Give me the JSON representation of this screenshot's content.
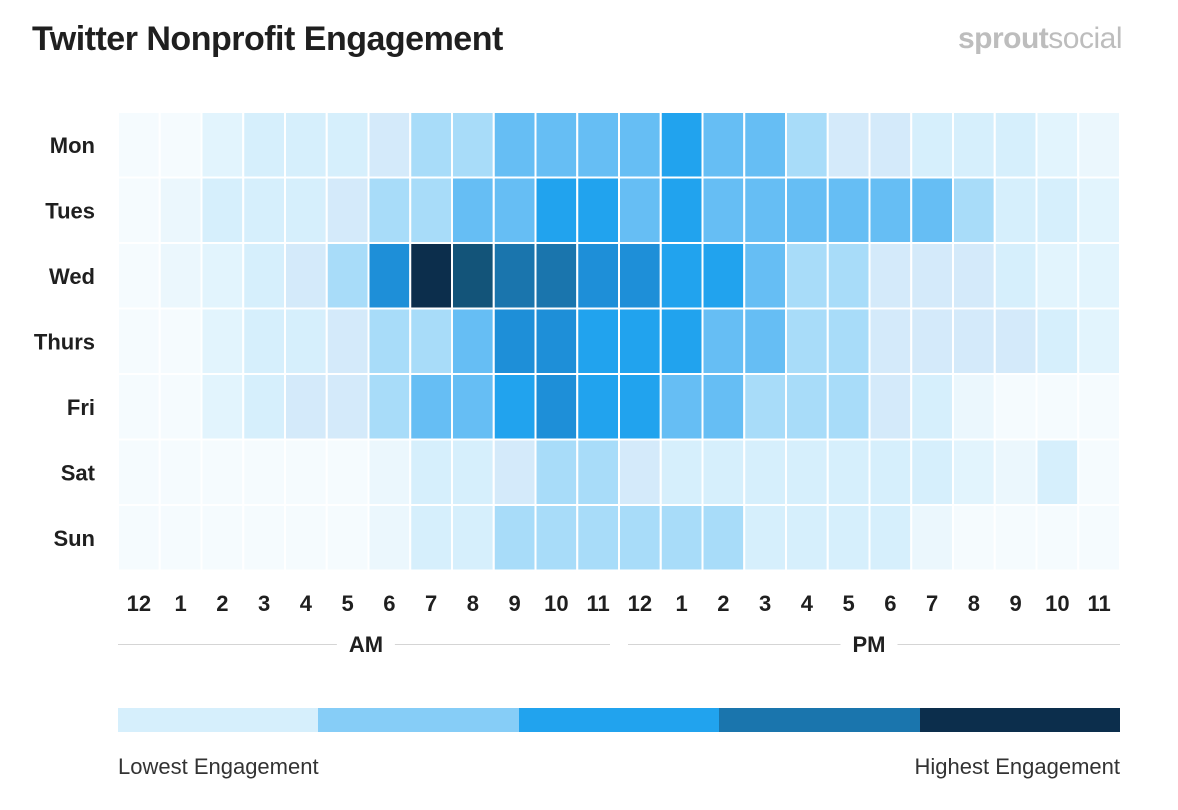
{
  "title": "Twitter Nonprofit Engagement",
  "brand": {
    "part1": "sprout",
    "part2": "social"
  },
  "chart_data": {
    "type": "heatmap",
    "title": "Twitter Nonprofit Engagement",
    "rows": [
      "Mon",
      "Tues",
      "Wed",
      "Thurs",
      "Fri",
      "Sat",
      "Sun"
    ],
    "columns": [
      "12",
      "1",
      "2",
      "3",
      "4",
      "5",
      "6",
      "7",
      "8",
      "9",
      "10",
      "11",
      "12",
      "1",
      "2",
      "3",
      "4",
      "5",
      "6",
      "7",
      "8",
      "9",
      "10",
      "11"
    ],
    "column_groups": [
      "AM",
      "PM"
    ],
    "scale": [
      "#f5fbfe",
      "#ebf7fd",
      "#e2f4fd",
      "#d6effc",
      "#d4eafa",
      "#a8dcf9",
      "#66bef4",
      "#21a3ee",
      "#1e8fd8",
      "#1a75ad",
      "#135479",
      "#0c2e4c"
    ],
    "values": [
      [
        0,
        0,
        2,
        3,
        3,
        3,
        4,
        5,
        5,
        6,
        6,
        6,
        6,
        7,
        6,
        6,
        5,
        4,
        4,
        3,
        3,
        3,
        2,
        1
      ],
      [
        0,
        1,
        3,
        3,
        3,
        4,
        5,
        5,
        6,
        6,
        7,
        7,
        6,
        7,
        6,
        6,
        6,
        6,
        6,
        6,
        5,
        3,
        3,
        2
      ],
      [
        0,
        1,
        2,
        3,
        4,
        5,
        8,
        11,
        10,
        9,
        9,
        8,
        8,
        7,
        7,
        6,
        5,
        5,
        4,
        4,
        4,
        3,
        2,
        2
      ],
      [
        0,
        0,
        2,
        3,
        3,
        4,
        5,
        5,
        6,
        8,
        8,
        7,
        7,
        7,
        6,
        6,
        5,
        5,
        4,
        4,
        4,
        4,
        3,
        2
      ],
      [
        0,
        0,
        2,
        3,
        4,
        4,
        5,
        6,
        6,
        7,
        8,
        7,
        7,
        6,
        6,
        5,
        5,
        5,
        4,
        3,
        1,
        0,
        0,
        0
      ],
      [
        0,
        0,
        0,
        0,
        0,
        0,
        1,
        3,
        3,
        4,
        5,
        5,
        4,
        3,
        3,
        3,
        3,
        3,
        3,
        3,
        2,
        1,
        3,
        0
      ],
      [
        0,
        0,
        0,
        0,
        0,
        0,
        1,
        3,
        3,
        5,
        5,
        5,
        5,
        5,
        5,
        3,
        3,
        3,
        3,
        1,
        0,
        0,
        0,
        0
      ]
    ],
    "legend": {
      "colors": [
        "#d6effc",
        "#86cdf7",
        "#21a3ee",
        "#1a75ad",
        "#0c2e4c"
      ],
      "low_label": "Lowest Engagement",
      "high_label": "Highest Engagement"
    }
  }
}
